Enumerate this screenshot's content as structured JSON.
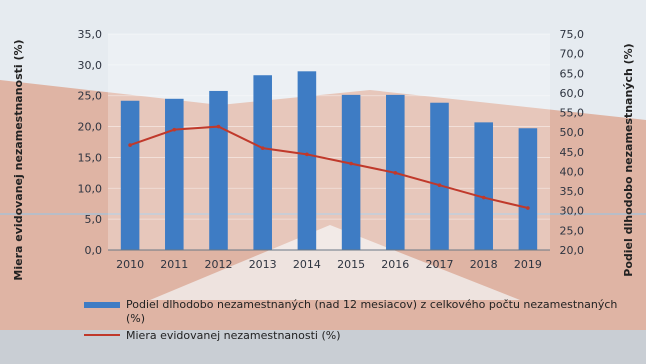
{
  "chart_data": {
    "type": "bar+line",
    "categories": [
      "2010",
      "2011",
      "2012",
      "2013",
      "2014",
      "2015",
      "2016",
      "2017",
      "2018",
      "2019"
    ],
    "series": [
      {
        "name": "Podiel dlhodobo nezamestnaných (nad 12 mesiacov) z celkového počtu nezamestnaných (%)",
        "type": "bar",
        "axis": "right",
        "values": [
          58.0,
          58.5,
          60.5,
          64.5,
          65.5,
          59.5,
          59.5,
          57.5,
          52.5,
          51.0
        ]
      },
      {
        "name": "Miera evidovanej nezamestnanosti (%)",
        "type": "line",
        "axis": "left",
        "values": [
          17.0,
          19.5,
          20.0,
          16.5,
          15.5,
          14.0,
          12.5,
          10.5,
          8.5,
          6.8
        ]
      }
    ],
    "y_left": {
      "label": "Miera evidovanej nezamestnanosti (%)",
      "ticks": [
        "35,0",
        "30,0",
        "25,0",
        "20,0",
        "15,0",
        "10,0",
        "5,0",
        "0,0"
      ],
      "range": [
        0,
        35
      ]
    },
    "y_right": {
      "label": "Podiel dlhodobo nezamestnaných (%)",
      "ticks": [
        "75,0",
        "70,0",
        "65,0",
        "60,0",
        "55,0",
        "50,0",
        "45,0",
        "40,0",
        "35,0",
        "30,0",
        "25,0",
        "20,0"
      ],
      "range": [
        20,
        75
      ]
    },
    "legend_position": "bottom",
    "colors": {
      "bar": "#3e7cc4",
      "line": "#c0392b"
    }
  }
}
